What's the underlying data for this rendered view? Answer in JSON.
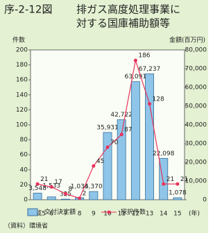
{
  "chart_data": {
    "type": "bar-line",
    "figure_label": "序-2-12図",
    "title_lines": [
      "排ガス高度処理事業に",
      "対する国庫補助額等"
    ],
    "y_label": "件数",
    "y2_label": "金額(百万円)",
    "x_unit": "(年)",
    "categories": [
      "平成5",
      "6",
      "7",
      "8",
      "9",
      "10",
      "11",
      "12",
      "13",
      "14",
      "15"
    ],
    "series": [
      {
        "name": "交付決定額",
        "mark": "bar",
        "axis": "y2",
        "color": "#8ec5e8",
        "values": [
          3548,
          1533,
          325,
          1035,
          4370,
          35931,
          42722,
          63091,
          67237,
          22098,
          1078
        ],
        "value_labels": [
          "3,548",
          "1,533",
          "325",
          "1,035",
          "4,370",
          "35,931",
          "42,722",
          "63,091",
          "67,237",
          "22,098",
          "1,078"
        ]
      },
      {
        "name": "採択件数",
        "mark": "line",
        "axis": "y",
        "color": "#e8325a",
        "values": [
          21,
          17,
          8,
          2,
          45,
          70,
          87,
          186,
          128,
          21,
          21
        ]
      }
    ],
    "ylim": [
      0,
      200
    ],
    "yticks": [
      0,
      20,
      40,
      60,
      80,
      100,
      120,
      140,
      160,
      180,
      200
    ],
    "y2lim": [
      0,
      80000
    ],
    "y2ticks": [
      0,
      {
        "value": 10000,
        "label": "10,000"
      },
      {
        "value": 20000,
        "label": "20,000"
      },
      {
        "value": 30000,
        "label": "30,000"
      },
      {
        "value": 40000,
        "label": "40,000"
      },
      {
        "value": 50000,
        "label": "50,000"
      },
      {
        "value": 60000,
        "label": "60,000"
      },
      {
        "value": 70000,
        "label": "70,000"
      },
      {
        "value": 80000,
        "label": "80,000"
      }
    ],
    "source": "（資料）環境省"
  }
}
